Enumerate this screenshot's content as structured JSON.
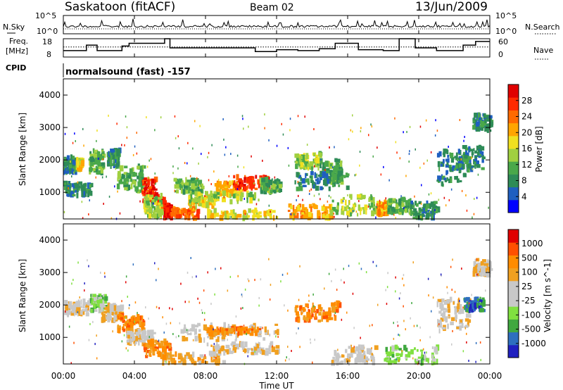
{
  "header": {
    "station": "Saskatoon (fitACF)",
    "beam": "Beam 02",
    "date": "13/Jun/2009"
  },
  "left_labels": {
    "nsky": "N.Sky",
    "freq_line1": "Freq.",
    "freq_line2": "[MHz]",
    "cpid": "CPID"
  },
  "right_labels": {
    "nsearch": "N.Search",
    "nave": "Nave"
  },
  "cpid_text": "normalsound (fast) -157",
  "colors": {
    "power": [
      "#0000ff",
      "#1f5fc0",
      "#2e8b57",
      "#4aa84a",
      "#a0d040",
      "#f0e020",
      "#ffa500",
      "#ff6a00",
      "#ff2a00",
      "#e00000"
    ],
    "velocity": [
      "#e00000",
      "#ff5000",
      "#ff8c00",
      "#f0a020",
      "#c8c8c8",
      "#c8c8c8",
      "#80e040",
      "#40a840",
      "#2e6fbf",
      "#2020c0"
    ]
  },
  "chart_data": [
    {
      "type": "line",
      "name_left": "N.Sky",
      "name_right": "N.Search",
      "x_range_hours": [
        0,
        24
      ],
      "y_tick_labels": [
        "10^5",
        "10^0"
      ],
      "right_tick_labels": [
        "10^5",
        "10^0"
      ]
    },
    {
      "type": "line",
      "series": [
        {
          "name": "Freq. [MHz]",
          "x": [
            0,
            1.3,
            1.3,
            1.9,
            1.9,
            3.3,
            3.3,
            3.7,
            3.7,
            5.7,
            5.7,
            6.0,
            6.0,
            10.8,
            10.8,
            12.0,
            12.0,
            13.2,
            13.2,
            14.4,
            14.4,
            15.3,
            15.3,
            16.6,
            16.6,
            18.0,
            18.0,
            18.9,
            18.9,
            19.8,
            19.8,
            21.0,
            21.0,
            22.5,
            22.5,
            23.2,
            23.2,
            24.0
          ],
          "y": [
            11.5,
            11.5,
            14.5,
            14.5,
            11.5,
            11.5,
            14.0,
            14.0,
            15.5,
            15.5,
            18.0,
            18.0,
            13.0,
            13.0,
            11.0,
            11.0,
            12.0,
            12.0,
            11.5,
            11.5,
            12.5,
            12.5,
            15.5,
            15.5,
            12.0,
            12.0,
            11.5,
            11.5,
            18.0,
            18.0,
            13.0,
            13.0,
            11.5,
            11.5,
            14.5,
            14.5,
            16.5,
            16.5
          ]
        },
        {
          "name": "Nave",
          "x": [
            0,
            24
          ],
          "y": [
            33,
            33
          ]
        }
      ],
      "ylim_left": [
        8,
        18
      ],
      "ylim_right": [
        0,
        60
      ],
      "y_ticks_left": [
        8,
        18
      ],
      "y_ticks_right": [
        0,
        60
      ]
    },
    {
      "type": "heatmap",
      "quantity": "Power",
      "ylabel": "Slant Range [km]",
      "ylim": [
        180,
        4500
      ],
      "y_ticks": [
        1000,
        2000,
        3000,
        4000
      ],
      "colorbar_label": "Power [dB]",
      "colorbar_ticks": [
        4,
        8,
        12,
        16,
        20,
        24,
        28
      ],
      "blobs": [
        {
          "t0": 0.0,
          "t1": 0.7,
          "r0": 1600,
          "r1": 2100,
          "level": 2
        },
        {
          "t0": 0.7,
          "t1": 1.0,
          "r0": 1700,
          "r1": 2000,
          "level": 5
        },
        {
          "t0": 0.0,
          "t1": 1.5,
          "r0": 900,
          "r1": 1300,
          "level": 2
        },
        {
          "t0": 1.4,
          "t1": 2.2,
          "r0": 1600,
          "r1": 2300,
          "level": 3
        },
        {
          "t0": 2.4,
          "t1": 3.1,
          "r0": 1800,
          "r1": 2300,
          "level": 2
        },
        {
          "t0": 3.0,
          "t1": 4.5,
          "r0": 1000,
          "r1": 1800,
          "level": 3
        },
        {
          "t0": 4.4,
          "t1": 5.2,
          "r0": 700,
          "r1": 1400,
          "level": 8
        },
        {
          "t0": 5.2,
          "t1": 5.6,
          "r0": 400,
          "r1": 800,
          "level": 8
        },
        {
          "t0": 5.6,
          "t1": 6.0,
          "r0": 200,
          "r1": 600,
          "level": 9
        },
        {
          "t0": 6.0,
          "t1": 7.5,
          "r0": 200,
          "r1": 500,
          "level": 7
        },
        {
          "t0": 4.5,
          "t1": 5.5,
          "r0": 250,
          "r1": 900,
          "level": 4
        },
        {
          "t0": 6.2,
          "t1": 7.8,
          "r0": 1000,
          "r1": 1400,
          "level": 3
        },
        {
          "t0": 7.0,
          "t1": 8.5,
          "r0": 550,
          "r1": 900,
          "level": 5
        },
        {
          "t0": 8.5,
          "t1": 10.0,
          "r0": 900,
          "r1": 1300,
          "level": 6
        },
        {
          "t0": 9.5,
          "t1": 11.5,
          "r0": 1100,
          "r1": 1500,
          "level": 8
        },
        {
          "t0": 11.0,
          "t1": 12.2,
          "r0": 1000,
          "r1": 1400,
          "level": 3
        },
        {
          "t0": 7.0,
          "t1": 11.0,
          "r0": 700,
          "r1": 1000,
          "level": 4
        },
        {
          "t0": 8.0,
          "t1": 12.0,
          "r0": 200,
          "r1": 450,
          "level": 5
        },
        {
          "t0": 13.0,
          "t1": 14.4,
          "r0": 1700,
          "r1": 2200,
          "level": 4
        },
        {
          "t0": 14.4,
          "t1": 15.6,
          "r0": 1300,
          "r1": 2000,
          "level": 3
        },
        {
          "t0": 13.0,
          "t1": 16.0,
          "r0": 1100,
          "r1": 1600,
          "level": 2
        },
        {
          "t0": 12.6,
          "t1": 15.0,
          "r0": 200,
          "r1": 600,
          "level": 6
        },
        {
          "t0": 15.0,
          "t1": 17.6,
          "r0": 300,
          "r1": 900,
          "level": 4
        },
        {
          "t0": 17.6,
          "t1": 18.2,
          "r0": 300,
          "r1": 700,
          "level": 6
        },
        {
          "t0": 18.2,
          "t1": 19.5,
          "r0": 350,
          "r1": 800,
          "level": 3
        },
        {
          "t0": 19.5,
          "t1": 21.0,
          "r0": 200,
          "r1": 700,
          "level": 2
        },
        {
          "t0": 21.0,
          "t1": 22.5,
          "r0": 1200,
          "r1": 2300,
          "level": 2
        },
        {
          "t0": 22.2,
          "t1": 23.6,
          "r0": 1700,
          "r1": 2400,
          "level": 2
        },
        {
          "t0": 23.0,
          "t1": 24.0,
          "r0": 2900,
          "r1": 3400,
          "level": 2
        }
      ]
    },
    {
      "type": "heatmap",
      "quantity": "Velocity",
      "ylabel": "Slant Range [km]",
      "ylim": [
        180,
        4500
      ],
      "y_ticks": [
        1000,
        2000,
        3000,
        4000
      ],
      "colorbar_label": "Velocity [m s^-1]",
      "colorbar_ticks": [
        1000,
        500,
        100,
        25,
        -25,
        -100,
        -500,
        -1000
      ],
      "blobs": [
        {
          "t0": 0.0,
          "t1": 1.5,
          "r0": 1700,
          "r1": 2100,
          "level": 4
        },
        {
          "t0": 1.5,
          "t1": 2.5,
          "r0": 1800,
          "r1": 2300,
          "level": 6
        },
        {
          "t0": 2.0,
          "t1": 3.2,
          "r0": 1500,
          "r1": 2000,
          "level": 4
        },
        {
          "t0": 3.0,
          "t1": 4.5,
          "r0": 1200,
          "r1": 1700,
          "level": 2
        },
        {
          "t0": 3.5,
          "t1": 5.0,
          "r0": 800,
          "r1": 1200,
          "level": 4
        },
        {
          "t0": 4.5,
          "t1": 6.0,
          "r0": 400,
          "r1": 900,
          "level": 2
        },
        {
          "t0": 5.5,
          "t1": 9.0,
          "r0": 200,
          "r1": 500,
          "level": 3
        },
        {
          "t0": 6.5,
          "t1": 12.0,
          "r0": 900,
          "r1": 1400,
          "level": 4
        },
        {
          "t0": 8.0,
          "t1": 11.0,
          "r0": 1100,
          "r1": 1300,
          "level": 2
        },
        {
          "t0": 8.0,
          "t1": 12.0,
          "r0": 500,
          "r1": 800,
          "level": 4
        },
        {
          "t0": 13.0,
          "t1": 15.5,
          "r0": 1500,
          "r1": 2100,
          "level": 2
        },
        {
          "t0": 15.0,
          "t1": 17.5,
          "r0": 200,
          "r1": 700,
          "level": 4
        },
        {
          "t0": 18.0,
          "t1": 21.0,
          "r0": 200,
          "r1": 700,
          "level": 6
        },
        {
          "t0": 21.0,
          "t1": 22.8,
          "r0": 1200,
          "r1": 2200,
          "level": 4
        },
        {
          "t0": 22.5,
          "t1": 23.6,
          "r0": 1800,
          "r1": 2200,
          "level": 8
        },
        {
          "t0": 23.0,
          "t1": 24.0,
          "r0": 2900,
          "r1": 3400,
          "level": 4
        }
      ]
    }
  ],
  "time_axis": {
    "label": "Time UT",
    "ticks": [
      "00:00",
      "04:00",
      "08:00",
      "12:00",
      "16:00",
      "20:00",
      "00:00"
    ]
  }
}
